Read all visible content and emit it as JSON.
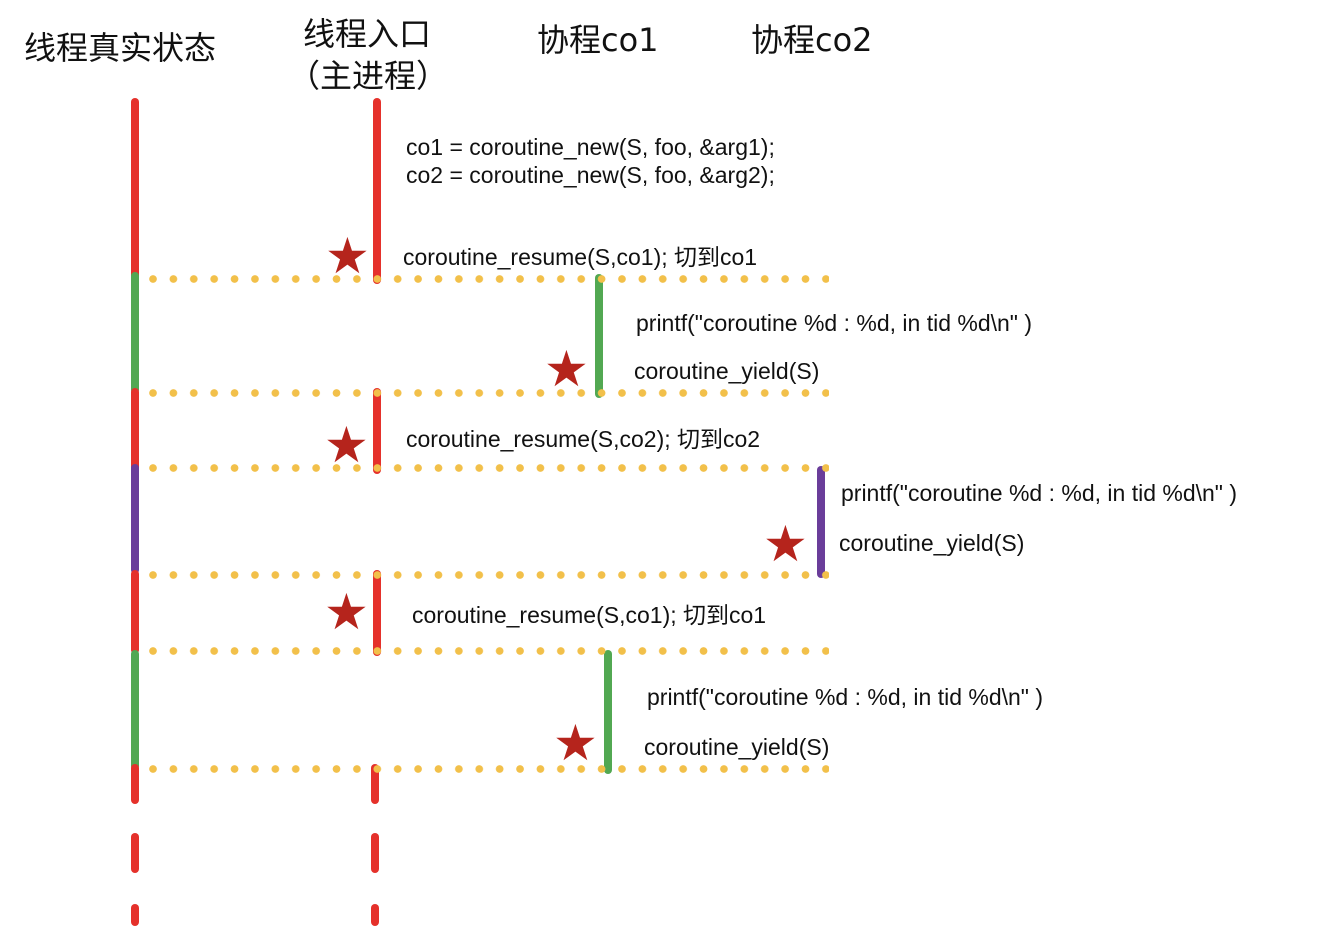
{
  "headers": {
    "thread_state": "线程真实状态",
    "entry_line1": "线程入口",
    "entry_line2": "（主进程）",
    "co1": "协程co1",
    "co2": "协程co2"
  },
  "steps": {
    "create_co1": "co1 = coroutine_new(S, foo, &arg1);",
    "create_co2": "co2 = coroutine_new(S, foo, &arg2);",
    "resume1": "coroutine_resume(S,co1); 切到co1",
    "printf1": "printf(\"coroutine %d : %d, in tid %d\\n\" )",
    "yield1": "coroutine_yield(S)",
    "resume2": "coroutine_resume(S,co2); 切到co2",
    "printf2": "printf(\"coroutine %d : %d, in tid %d\\n\" )",
    "yield2": "coroutine_yield(S)",
    "resume3": "coroutine_resume(S,co1); 切到co1",
    "printf3": "printf(\"coroutine %d : %d, in tid %d\\n\" )",
    "yield3": "coroutine_yield(S)"
  },
  "colors": {
    "main": "#e5312b",
    "co1": "#52a852",
    "co2": "#6a3d9a",
    "switch_line": "#f2c04a",
    "star": "#b5241c"
  },
  "icons": {
    "switch_marker": "star-icon"
  }
}
